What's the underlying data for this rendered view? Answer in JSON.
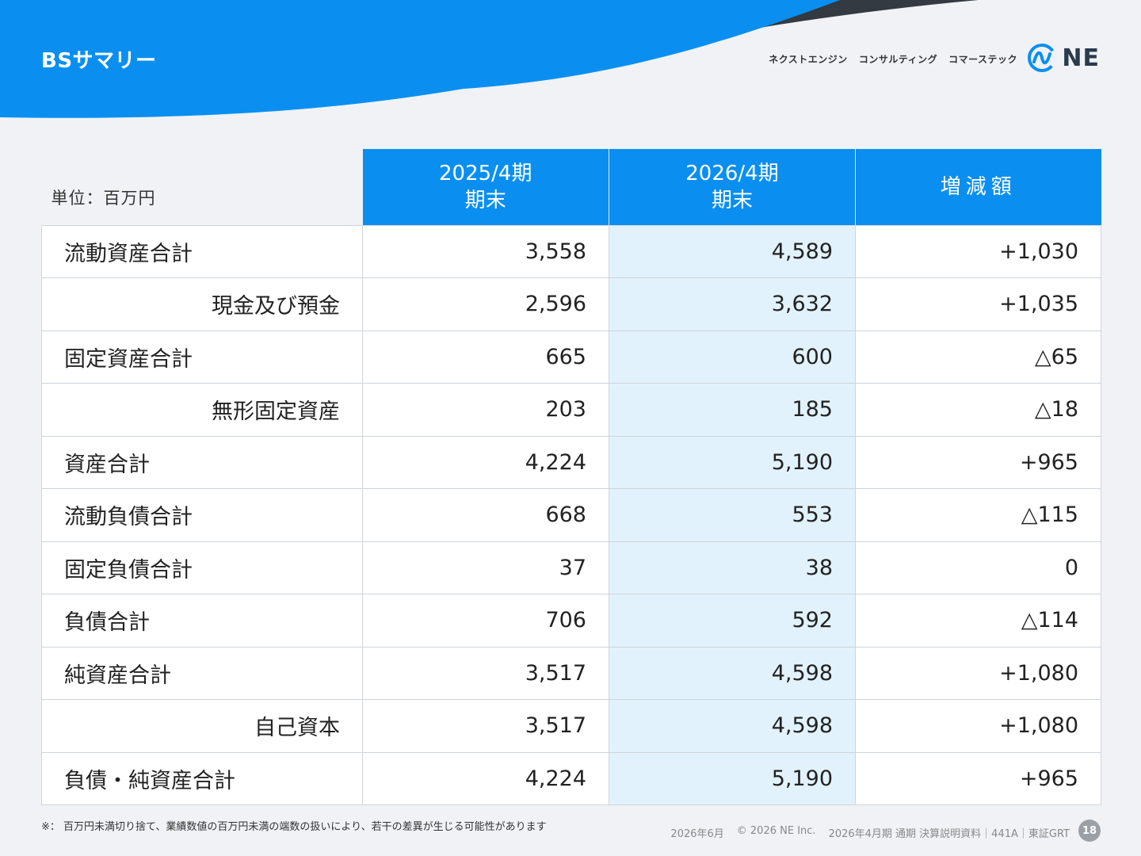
{
  "header": {
    "title": "BSサマリー",
    "tagline": [
      "ネクストエンジン",
      "コンサルティング",
      "コマーステック"
    ],
    "logo_text": "NE"
  },
  "colors": {
    "brand_blue": "#0a8ff0",
    "dark_wave": "#333a41",
    "highlight": "#e2f2fc"
  },
  "table": {
    "unit": "単位：百万円",
    "columns": [
      {
        "line1": "2025/4期",
        "line2": "期末"
      },
      {
        "line1": "2026/4期",
        "line2": "期末"
      },
      {
        "line1": "増減額",
        "line2": ""
      }
    ],
    "rows": [
      {
        "label": "流動資産合計",
        "prev": "3,558",
        "curr": "4,589",
        "diff": "+1,030",
        "sub": false
      },
      {
        "label": "現金及び預金",
        "prev": "2,596",
        "curr": "3,632",
        "diff": "+1,035",
        "sub": true
      },
      {
        "label": "固定資産合計",
        "prev": "665",
        "curr": "600",
        "diff": "△65",
        "sub": false
      },
      {
        "label": "無形固定資産",
        "prev": "203",
        "curr": "185",
        "diff": "△18",
        "sub": true
      },
      {
        "label": "資産合計",
        "prev": "4,224",
        "curr": "5,190",
        "diff": "+965",
        "sub": false
      },
      {
        "label": "流動負債合計",
        "prev": "668",
        "curr": "553",
        "diff": "△115",
        "sub": false
      },
      {
        "label": "固定負債合計",
        "prev": "37",
        "curr": "38",
        "diff": "0",
        "sub": false
      },
      {
        "label": "負債合計",
        "prev": "706",
        "curr": "592",
        "diff": "△114",
        "sub": false
      },
      {
        "label": "純資産合計",
        "prev": "3,517",
        "curr": "4,598",
        "diff": "+1,080",
        "sub": false
      },
      {
        "label": "自己資本",
        "prev": "3,517",
        "curr": "4,598",
        "diff": "+1,080",
        "sub": true
      },
      {
        "label": "負債・純資産合計",
        "prev": "4,224",
        "curr": "5,190",
        "diff": "+965",
        "sub": false
      }
    ]
  },
  "footnote": "※：  百万円未満切り捨て、業績数値の百万円未満の端数の扱いにより、若干の差異が生じる可能性があります",
  "footer": {
    "date": "2026年6月",
    "copyright": "© 2026 NE Inc.",
    "doc": "2026年4月期 通期 決算説明資料｜441A｜東証GRT",
    "page": "18"
  }
}
